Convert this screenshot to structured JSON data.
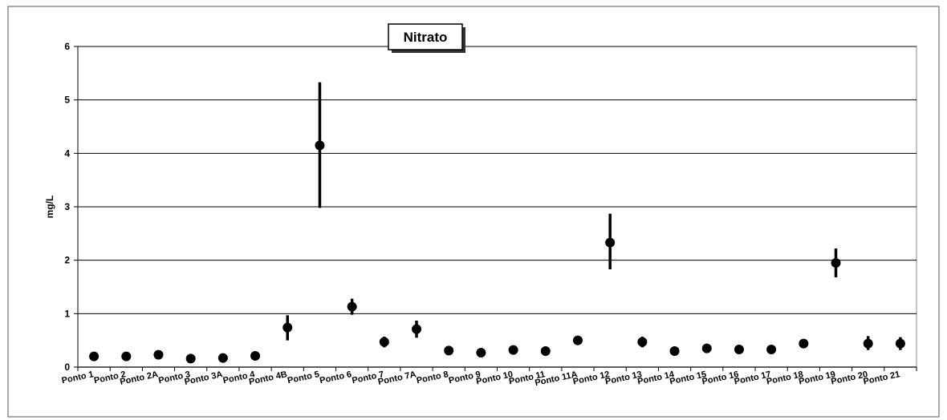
{
  "chart_data": {
    "type": "scatter",
    "title": "Nitrato",
    "xlabel": "",
    "ylabel": "mg/L",
    "ylim": [
      0,
      6
    ],
    "yticks": [
      0,
      1,
      2,
      3,
      4,
      5,
      6
    ],
    "grid": true,
    "legend": "none",
    "categories": [
      "Ponto 1",
      "Ponto 2",
      "Ponto 2A",
      "Ponto 3",
      "Ponto 3A",
      "Ponto 4",
      "Ponto 4B",
      "Ponto 5",
      "Ponto 6",
      "Ponto 7",
      "Ponto 7A",
      "Ponto 8",
      "Ponto 9",
      "Ponto 10",
      "Ponto 11",
      "Ponto 11A",
      "Ponto 12",
      "Ponto 13",
      "Ponto 14",
      "Ponto 15",
      "Ponto 16",
      "Ponto 17",
      "Ponto 18",
      "Ponto 19",
      "Ponto 20",
      "Ponto 21"
    ],
    "series": [
      {
        "values": [
          0.2,
          0.2,
          0.23,
          0.16,
          0.17,
          0.21,
          0.74,
          4.15,
          1.13,
          0.47,
          0.71,
          0.31,
          0.27,
          0.32,
          0.3,
          0.5,
          2.33,
          0.47,
          0.3,
          0.35,
          0.33,
          0.33,
          0.44,
          1.95,
          0.44,
          0.44
        ],
        "error_low": [
          0.15,
          0.15,
          0.18,
          0.12,
          0.13,
          0.16,
          0.5,
          2.98,
          0.98,
          0.37,
          0.55,
          0.27,
          0.23,
          0.28,
          0.26,
          0.44,
          1.83,
          0.37,
          0.26,
          0.31,
          0.29,
          0.29,
          0.38,
          1.68,
          0.32,
          0.32
        ],
        "error_high": [
          0.26,
          0.26,
          0.28,
          0.21,
          0.22,
          0.26,
          0.97,
          5.33,
          1.28,
          0.57,
          0.87,
          0.35,
          0.31,
          0.36,
          0.34,
          0.56,
          2.87,
          0.57,
          0.34,
          0.39,
          0.37,
          0.37,
          0.5,
          2.22,
          0.58,
          0.56
        ]
      }
    ]
  }
}
